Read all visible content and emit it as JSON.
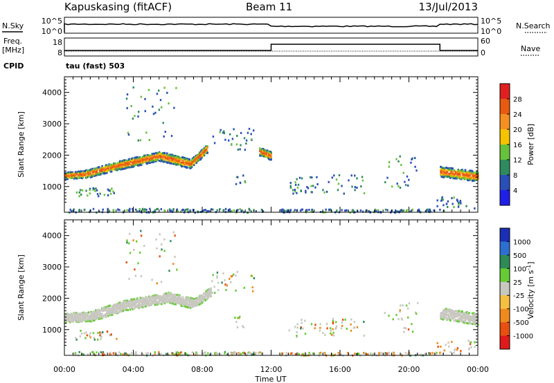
{
  "header": {
    "station": "Kapuskasing (fitACF)",
    "beam": "Beam 11",
    "date": "13/Jul/2013"
  },
  "panels": {
    "nsky_label": "N.Sky",
    "nsky_ticks": [
      "10^5",
      "10^0"
    ],
    "nsearch_label": "N.Search",
    "nsearch_ticks": [
      "10^5",
      "10^0"
    ],
    "freq_label": "Freq.",
    "freq_unit": "[MHz]",
    "freq_ticks": [
      "18",
      "8"
    ],
    "nave_label": "Nave",
    "nave_ticks": [
      "60",
      "0"
    ],
    "cpid_label": "CPID",
    "cpid_value": "tau (fast) 503"
  },
  "colors": {
    "power": [
      "#1f1fe8",
      "#2a4fb8",
      "#2f8b5e",
      "#66c23a",
      "#f5c400",
      "#f59020",
      "#e85a10",
      "#e02020"
    ],
    "velocity": [
      "#1a2fb5",
      "#2c6fd0",
      "#2e8b57",
      "#66cc33",
      "#c8c8c0",
      "#f5c040",
      "#f08a1c",
      "#e85010",
      "#e01a1a"
    ]
  },
  "chart_data": [
    {
      "type": "heatmap",
      "title": "",
      "xlabel": "Time UT",
      "ylabel": "Slant Range [km]",
      "x_ticks": [
        "00:00",
        "04:00",
        "08:00",
        "12:00",
        "16:00",
        "20:00",
        "00:00"
      ],
      "xlim_hours": [
        0,
        24
      ],
      "y_ticks": [
        1000,
        2000,
        3000,
        4000
      ],
      "ylim": [
        180,
        4500
      ],
      "colorbar_label": "Power [dB]",
      "colorbar_ticks": [
        4,
        8,
        12,
        16,
        20,
        24,
        28
      ],
      "colorbar_range": [
        0,
        32
      ],
      "bands": [
        {
          "t": [
            0.0,
            1.2
          ],
          "center": [
            1370,
            1420
          ],
          "width": 220
        },
        {
          "t": [
            1.2,
            3.0
          ],
          "center": [
            1420,
            1680
          ],
          "width": 260
        },
        {
          "t": [
            3.0,
            5.5
          ],
          "center": [
            1680,
            2000
          ],
          "width": 280
        },
        {
          "t": [
            5.5,
            7.3
          ],
          "center": [
            2000,
            1750
          ],
          "width": 300
        },
        {
          "t": [
            7.3,
            8.3
          ],
          "center": [
            1750,
            2250
          ],
          "width": 260
        },
        {
          "t": [
            11.3,
            12.0
          ],
          "center": [
            2150,
            2000
          ],
          "width": 260
        },
        {
          "t": [
            21.8,
            24.0
          ],
          "center": [
            1500,
            1350
          ],
          "width": 320
        }
      ]
    },
    {
      "type": "heatmap",
      "title": "",
      "xlabel": "Time UT",
      "ylabel": "Slant Range [km]",
      "x_ticks": [
        "00:00",
        "04:00",
        "08:00",
        "12:00",
        "16:00",
        "20:00",
        "00:00"
      ],
      "xlim_hours": [
        0,
        24
      ],
      "y_ticks": [
        1000,
        2000,
        3000,
        4000
      ],
      "ylim": [
        180,
        4500
      ],
      "colorbar_label": "Velocity [m s^-1]",
      "colorbar_ticks": [
        1000,
        500,
        100,
        25,
        -25,
        -100,
        -500,
        -1000
      ],
      "bands": [
        {
          "t": [
            0.0,
            1.5
          ],
          "center": [
            1400,
            1450
          ],
          "width": 300
        },
        {
          "t": [
            1.5,
            3.5
          ],
          "center": [
            1450,
            1800
          ],
          "width": 320
        },
        {
          "t": [
            3.5,
            6.0
          ],
          "center": [
            1800,
            2050
          ],
          "width": 320
        },
        {
          "t": [
            6.0,
            7.5
          ],
          "center": [
            2050,
            1850
          ],
          "width": 320
        },
        {
          "t": [
            7.5,
            8.5
          ],
          "center": [
            1850,
            2250
          ],
          "width": 280
        },
        {
          "t": [
            21.8,
            24.0
          ],
          "center": [
            1550,
            1350
          ],
          "width": 360
        }
      ]
    }
  ]
}
